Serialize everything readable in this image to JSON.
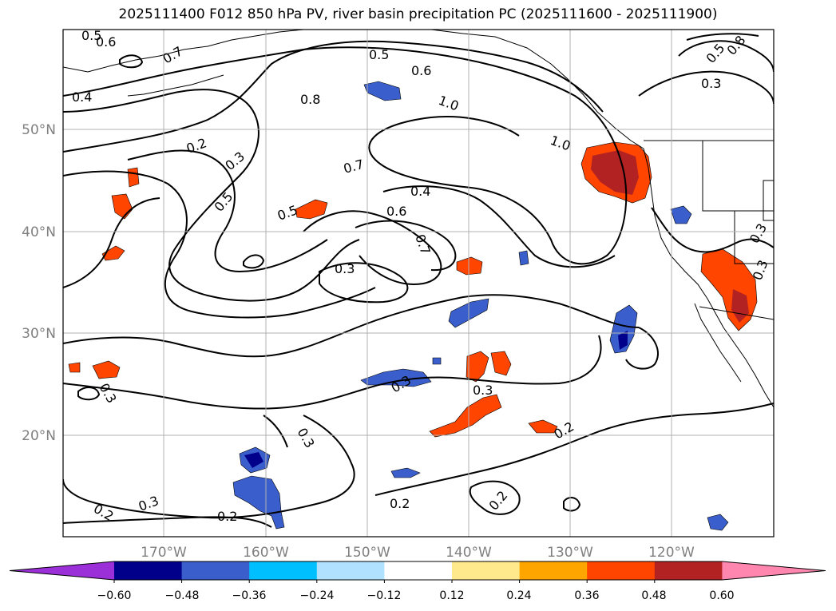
{
  "title": "2025111400 F012 850 hPa PV, river basin precipitation PC (2025111600 - 2025111900)",
  "map": {
    "lon_labels": [
      "170°W",
      "160°W",
      "150°W",
      "140°W",
      "130°W",
      "120°W"
    ],
    "lat_labels": [
      "50°N",
      "40°N",
      "30°N",
      "20°N"
    ],
    "contour_labels": [
      "0.5",
      "0.6",
      "0.7",
      "0.4",
      "0.8",
      "0.5",
      "0.6",
      "1.0",
      "1.0",
      "0.2",
      "0.3",
      "0.7",
      "0.5",
      "0.4",
      "0.5",
      "0.6",
      "0.7",
      "0.3",
      "0.3",
      "0.3",
      "0.3",
      "0.3",
      "0.2",
      "0.2",
      "0.3",
      "0.2",
      "0.2",
      "0.2",
      "0.3",
      "0.3",
      "0.3",
      "0.8",
      "0.5"
    ]
  },
  "colorbar": {
    "tick_labels": [
      "−0.60",
      "−0.48",
      "−0.36",
      "−0.24",
      "−0.12",
      "0.12",
      "0.24",
      "0.36",
      "0.48",
      "0.60"
    ],
    "colors": [
      "#9b30d9",
      "#00008b",
      "#3a5fcd",
      "#00bfff",
      "#b0e2ff",
      "#ffffff",
      "#ffe98c",
      "#ffa500",
      "#ff4500",
      "#b22222",
      "#ff86ae"
    ]
  },
  "colors": {
    "gridline": "#b0b0b0",
    "contour": "#000000",
    "tick_label": "#808080"
  }
}
